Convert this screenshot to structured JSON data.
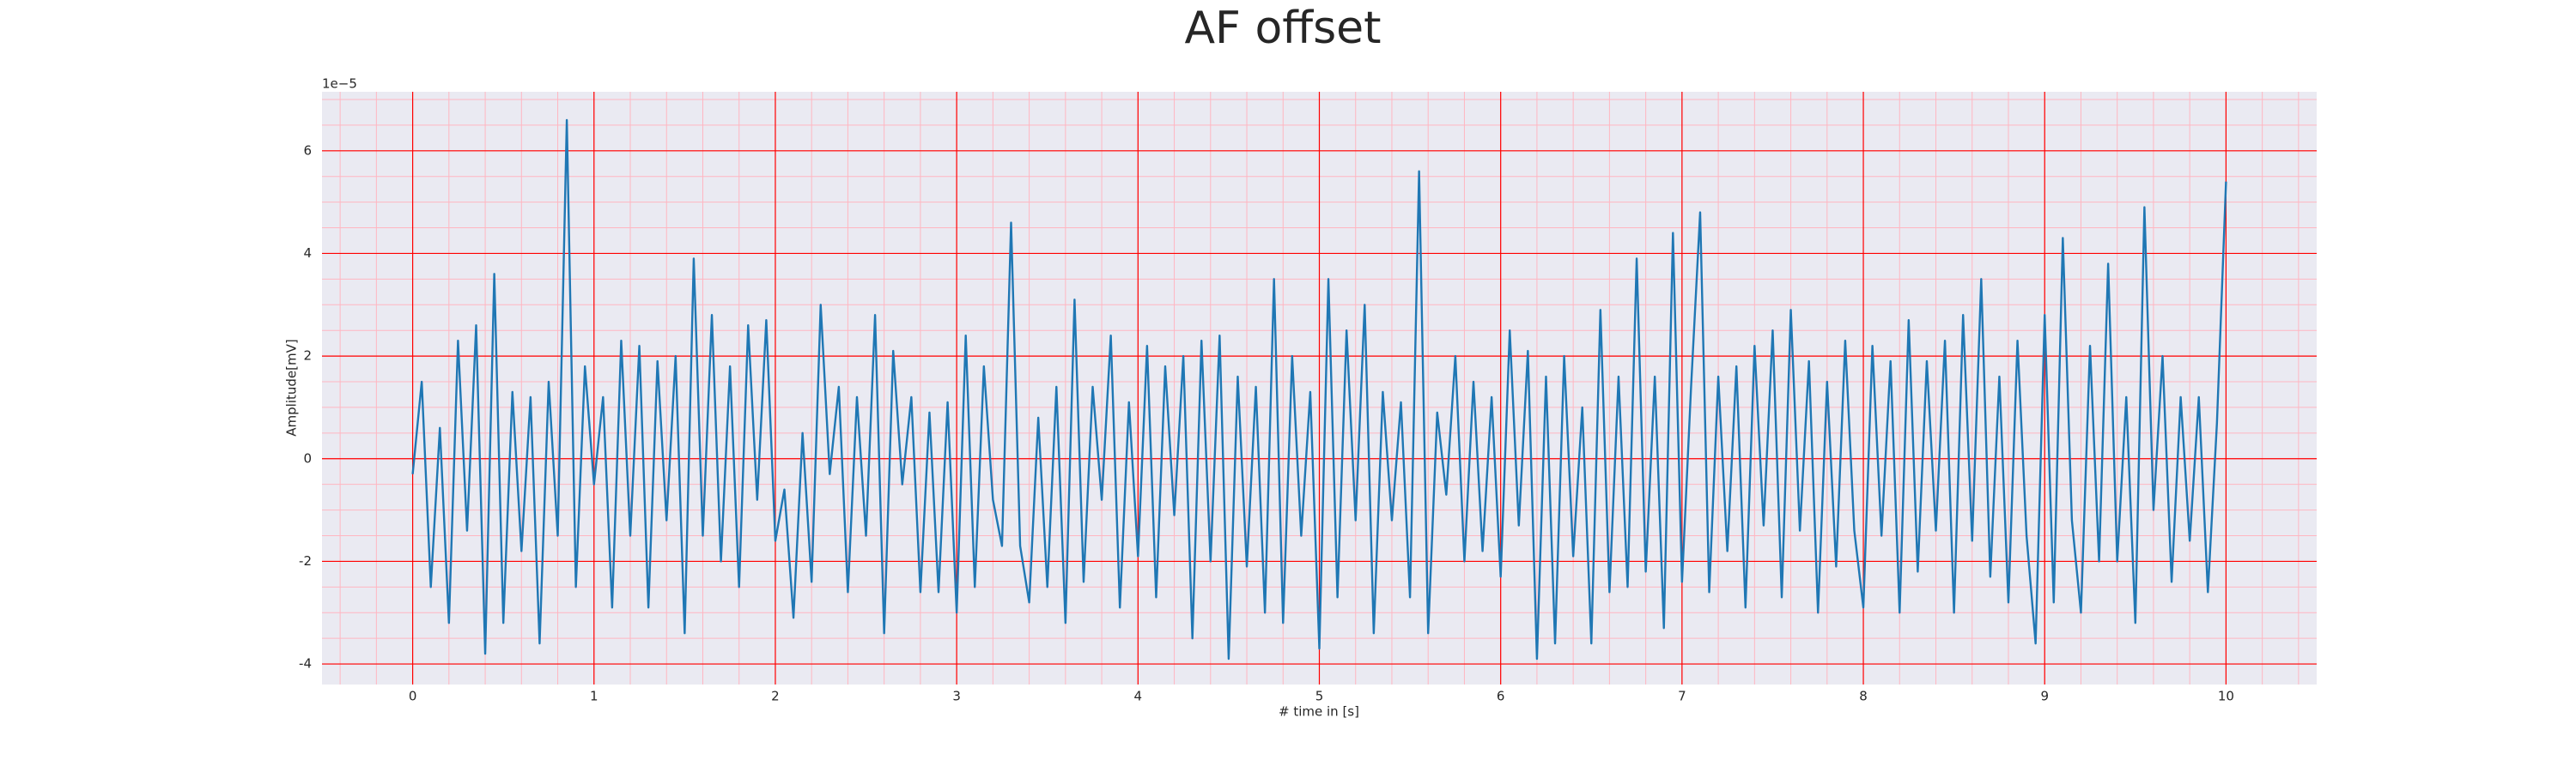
{
  "chart_data": {
    "type": "line",
    "title": "AF offset",
    "x_label": "# time in [s]",
    "y_label": "Amplitude[mV]",
    "y_offset_label": "1e−5",
    "x": [
      0,
      0.05,
      0.1,
      0.15,
      0.2,
      0.25,
      0.3,
      0.35,
      0.4,
      0.45,
      0.5,
      0.55,
      0.6,
      0.65,
      0.7,
      0.75,
      0.8,
      0.85,
      0.9,
      0.95,
      1,
      1.05,
      1.1,
      1.15,
      1.2,
      1.25,
      1.3,
      1.35,
      1.4,
      1.45,
      1.5,
      1.55,
      1.6,
      1.65,
      1.7,
      1.75,
      1.8,
      1.85,
      1.9,
      1.95,
      2,
      2.05,
      2.1,
      2.15,
      2.2,
      2.25,
      2.3,
      2.35,
      2.4,
      2.45,
      2.5,
      2.55,
      2.6,
      2.65,
      2.7,
      2.75,
      2.8,
      2.85,
      2.9,
      2.95,
      3,
      3.05,
      3.1,
      3.15,
      3.2,
      3.25,
      3.3,
      3.35,
      3.4,
      3.45,
      3.5,
      3.55,
      3.6,
      3.65,
      3.7,
      3.75,
      3.8,
      3.85,
      3.9,
      3.95,
      4,
      4.05,
      4.1,
      4.15,
      4.2,
      4.25,
      4.3,
      4.35,
      4.4,
      4.45,
      4.5,
      4.55,
      4.6,
      4.65,
      4.7,
      4.75,
      4.8,
      4.85,
      4.9,
      4.95,
      5,
      5.05,
      5.1,
      5.15,
      5.2,
      5.25,
      5.3,
      5.35,
      5.4,
      5.45,
      5.5,
      5.55,
      5.6,
      5.65,
      5.7,
      5.75,
      5.8,
      5.85,
      5.9,
      5.95,
      6,
      6.05,
      6.1,
      6.15,
      6.2,
      6.25,
      6.3,
      6.35,
      6.4,
      6.45,
      6.5,
      6.55,
      6.6,
      6.65,
      6.7,
      6.75,
      6.8,
      6.85,
      6.9,
      6.95,
      7,
      7.05,
      7.1,
      7.15,
      7.2,
      7.25,
      7.3,
      7.35,
      7.4,
      7.45,
      7.5,
      7.55,
      7.6,
      7.65,
      7.7,
      7.75,
      7.8,
      7.85,
      7.9,
      7.95,
      8,
      8.05,
      8.1,
      8.15,
      8.2,
      8.25,
      8.3,
      8.35,
      8.4,
      8.45,
      8.5,
      8.55,
      8.6,
      8.65,
      8.7,
      8.75,
      8.8,
      8.85,
      8.9,
      8.95,
      9,
      9.05,
      9.1,
      9.15,
      9.2,
      9.25,
      9.3,
      9.35,
      9.4,
      9.45,
      9.5,
      9.55,
      9.6,
      9.65,
      9.7,
      9.75,
      9.8,
      9.85,
      9.9,
      9.95,
      10
    ],
    "series": [
      {
        "name": "AF offset",
        "color": "#1f77b4",
        "values": [
          -0.3,
          1.5,
          -2.5,
          0.6,
          -3.2,
          2.3,
          -1.4,
          2.6,
          -3.8,
          3.6,
          -3.2,
          1.3,
          -1.8,
          1.2,
          -3.6,
          1.5,
          -1.5,
          6.6,
          -2.5,
          1.8,
          -0.5,
          1.2,
          -2.9,
          2.3,
          -1.5,
          2.2,
          -2.9,
          1.9,
          -1.2,
          2.0,
          -3.4,
          3.9,
          -1.5,
          2.8,
          -2.0,
          1.8,
          -2.5,
          2.6,
          -0.8,
          2.7,
          -1.6,
          -0.6,
          -3.1,
          0.5,
          -2.4,
          3.0,
          -0.3,
          1.4,
          -2.6,
          1.2,
          -1.5,
          2.8,
          -3.4,
          2.1,
          -0.5,
          1.2,
          -2.6,
          0.9,
          -2.6,
          1.1,
          -3.0,
          2.4,
          -2.5,
          1.8,
          -0.8,
          -1.7,
          4.6,
          -1.7,
          -2.8,
          0.8,
          -2.5,
          1.4,
          -3.2,
          3.1,
          -2.4,
          1.4,
          -0.8,
          2.4,
          -2.9,
          1.1,
          -1.9,
          2.2,
          -2.7,
          1.8,
          -1.1,
          2.0,
          -3.5,
          2.3,
          -2.0,
          2.4,
          -3.9,
          1.6,
          -2.1,
          1.4,
          -3.0,
          3.5,
          -3.2,
          2.0,
          -1.5,
          1.3,
          -3.7,
          3.5,
          -2.7,
          2.5,
          -1.2,
          3.0,
          -3.4,
          1.3,
          -1.2,
          1.1,
          -2.7,
          5.6,
          -3.4,
          0.9,
          -0.7,
          2.0,
          -2.0,
          1.5,
          -1.8,
          1.2,
          -2.3,
          2.5,
          -1.3,
          2.1,
          -3.9,
          1.6,
          -3.6,
          2.0,
          -1.9,
          1.0,
          -3.6,
          2.9,
          -2.6,
          1.6,
          -2.5,
          3.9,
          -2.2,
          1.6,
          -3.3,
          4.4,
          -2.4,
          1.4,
          4.8,
          -2.6,
          1.6,
          -1.8,
          1.8,
          -2.9,
          2.2,
          -1.3,
          2.5,
          -2.7,
          2.9,
          -1.4,
          1.9,
          -3.0,
          1.5,
          -2.1,
          2.3,
          -1.4,
          -2.9,
          2.2,
          -1.5,
          1.9,
          -3.0,
          2.7,
          -2.2,
          1.9,
          -1.4,
          2.3,
          -3.0,
          2.8,
          -1.6,
          3.5,
          -2.3,
          1.6,
          -2.8,
          2.3,
          -1.5,
          -3.6,
          2.8,
          -2.8,
          4.3,
          -1.2,
          -3.0,
          2.2,
          -2.0,
          3.8,
          -2.0,
          1.2,
          -3.2,
          4.9,
          -1.0,
          2.0,
          -2.4,
          1.2,
          -1.6,
          1.2,
          -2.6,
          0.7,
          5.4
        ]
      }
    ],
    "xlim": [
      -0.5,
      10.5
    ],
    "ylim": [
      -4.4,
      7.15
    ],
    "xticks": [
      0,
      1,
      2,
      3,
      4,
      5,
      6,
      7,
      8,
      9,
      10
    ],
    "yticks": [
      -4,
      -2,
      0,
      2,
      4,
      6
    ],
    "grid": true,
    "minor_grid": true,
    "grid_color": "#ff0000",
    "minor_grid_color": "#ffb6c1",
    "background": "#eaeaf2"
  }
}
